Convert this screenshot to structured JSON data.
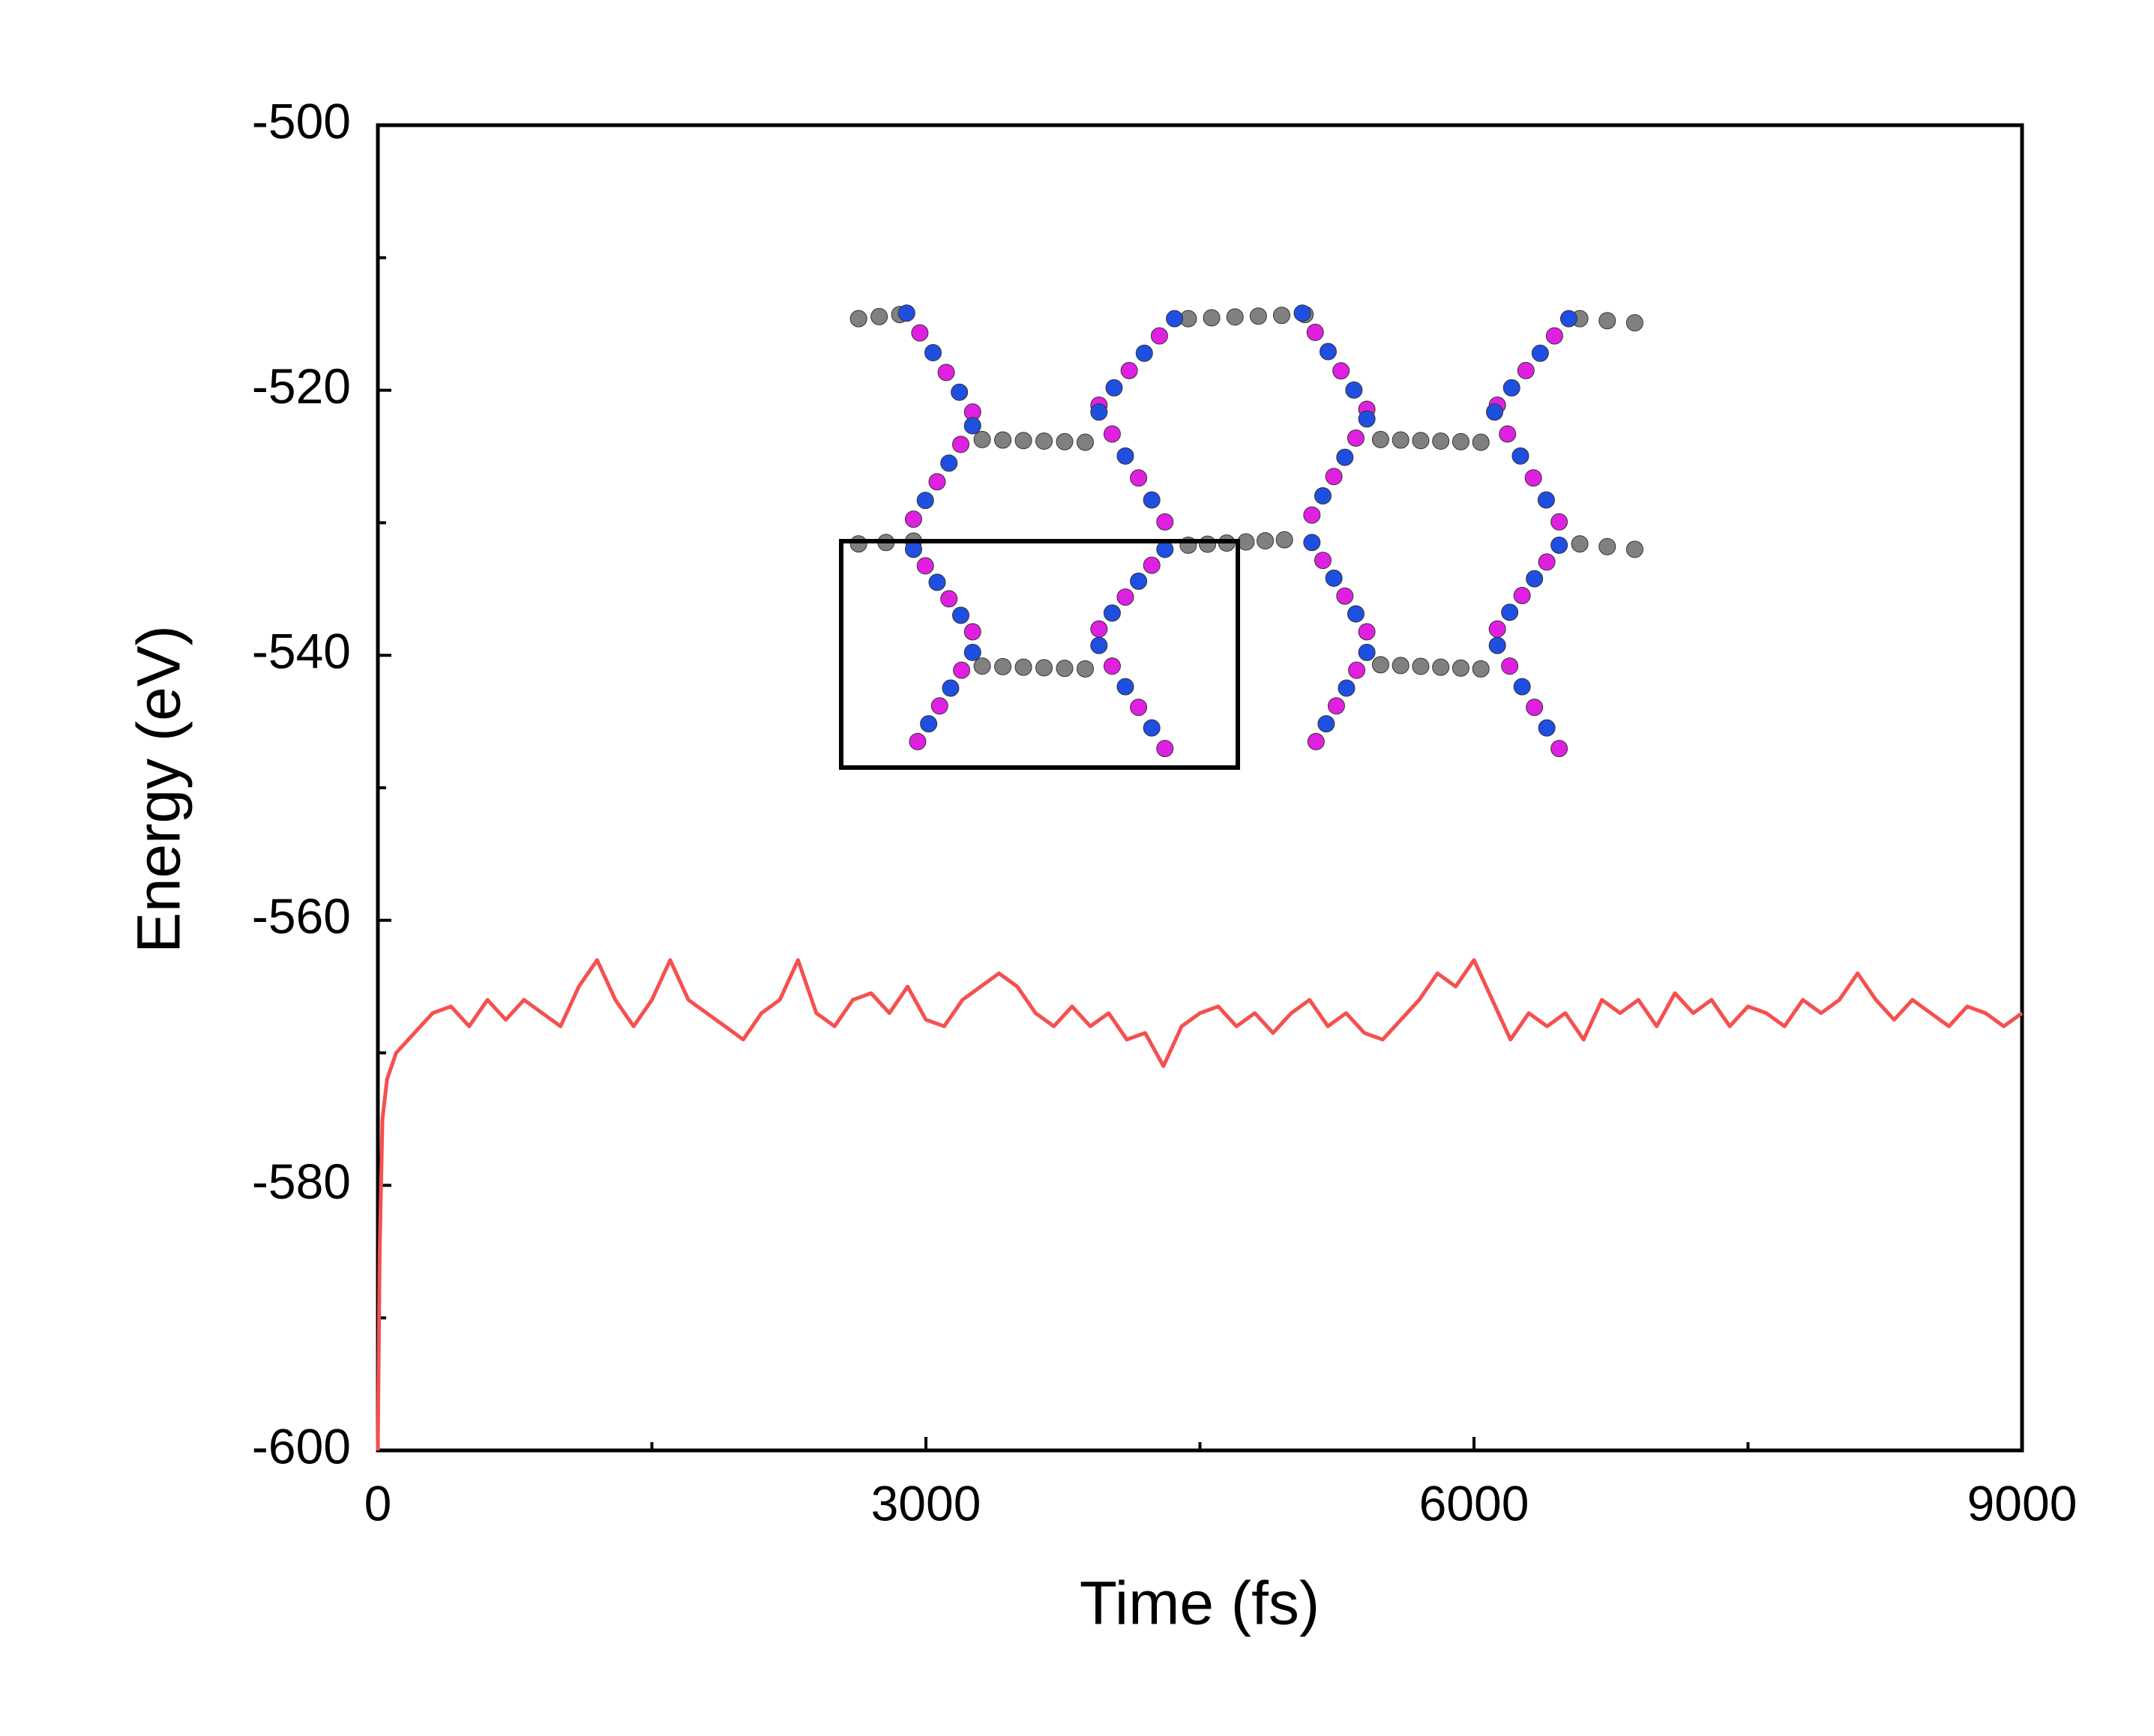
{
  "chart_data": {
    "type": "line",
    "x_label": "Time (fs)",
    "y_label": "Energy (eV)",
    "xlim": [
      0,
      9000
    ],
    "ylim": [
      -600,
      -500
    ],
    "xticks": [
      0,
      3000,
      6000,
      9000
    ],
    "yticks": [
      -600,
      -580,
      -560,
      -540,
      -520,
      -500
    ],
    "xminorticks": [
      1500,
      4500,
      7500
    ],
    "yminorticks": [
      -590,
      -570,
      -550,
      -530,
      -510
    ],
    "series": [
      {
        "color": "#f5504f",
        "x": [
          0,
          10,
          25,
          50,
          100,
          200,
          300,
          400,
          500,
          600,
          700,
          800,
          900,
          1000,
          1100,
          1200,
          1300,
          1400,
          1500,
          1600,
          1700,
          1800,
          1900,
          2000,
          2100,
          2200,
          2300,
          2400,
          2500,
          2600,
          2700,
          2800,
          2900,
          3000,
          3100,
          3200,
          3300,
          3400,
          3500,
          3600,
          3700,
          3800,
          3900,
          4000,
          4100,
          4200,
          4300,
          4400,
          4500,
          4600,
          4700,
          4800,
          4900,
          5000,
          5100,
          5200,
          5300,
          5400,
          5500,
          5600,
          5700,
          5800,
          5900,
          6000,
          6100,
          6200,
          6300,
          6400,
          6500,
          6600,
          6700,
          6800,
          6900,
          7000,
          7100,
          7200,
          7300,
          7400,
          7500,
          7600,
          7700,
          7800,
          7900,
          8000,
          8100,
          8200,
          8300,
          8400,
          8500,
          8600,
          8700,
          8800,
          8900,
          9000
        ],
        "values": [
          -600,
          -585,
          -575,
          -572,
          -570,
          -568.5,
          -567,
          -566.5,
          -568,
          -566,
          -567.5,
          -566,
          -567,
          -568,
          -565,
          -563,
          -566,
          -568,
          -566,
          -563,
          -566,
          -567,
          -568,
          -569,
          -567,
          -566,
          -563,
          -567,
          -568,
          -566,
          -565.5,
          -567,
          -565,
          -567.5,
          -568,
          -566,
          -565,
          -564,
          -565,
          -567,
          -568,
          -566.5,
          -568,
          -567,
          -569,
          -568.5,
          -571,
          -568,
          -567,
          -566.5,
          -568,
          -567,
          -568.5,
          -567,
          -566,
          -568,
          -567,
          -568.5,
          -569,
          -567.5,
          -566,
          -564,
          -565,
          -563,
          -566,
          -569,
          -567,
          -568,
          -567,
          -569,
          -566,
          -567,
          -566,
          -568,
          -565.5,
          -567,
          -566,
          -568,
          -566.5,
          -567,
          -568,
          -566,
          -567,
          -566,
          -564,
          -566,
          -567.5,
          -566,
          -567,
          -568,
          -566.5,
          -567,
          -568,
          -567
        ]
      }
    ]
  }
}
